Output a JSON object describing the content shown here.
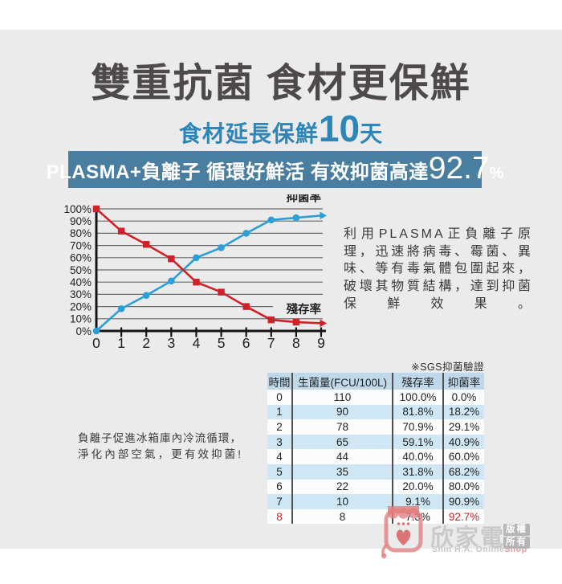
{
  "header": {
    "title": "雙重抗菌 食材更保鮮",
    "subtitle_prefix": "食材延長保鮮",
    "subtitle_number": "10",
    "subtitle_suffix": "天",
    "banner_text": "PLASMA+負離子 循環好鮮活 有效抑菌高達",
    "banner_number": "92.7",
    "banner_percent": "%"
  },
  "chart_data": {
    "type": "line",
    "x": [
      0,
      1,
      2,
      3,
      4,
      5,
      6,
      7,
      8,
      9
    ],
    "xlabel": "",
    "ylabel": "",
    "ylim": [
      0,
      100
    ],
    "ytick_step": 10,
    "ytick_suffix": "%",
    "grid": true,
    "legend_position": "inline-right",
    "series": [
      {
        "name": "抑菌率",
        "color": "#2b9fd8",
        "marker": "circle",
        "values": [
          0,
          18.2,
          29.1,
          40.9,
          60.0,
          68.2,
          80.0,
          90.9,
          92.7
        ],
        "arrow_end_value": 94.5,
        "label_y_pct": 107
      },
      {
        "name": "殘存率",
        "color": "#cf2127",
        "marker": "square",
        "values": [
          100,
          81.8,
          70.9,
          59.1,
          40.0,
          31.8,
          20.0,
          9.1,
          7.3
        ],
        "arrow_end_value": 6.3,
        "label_y_pct": 15
      }
    ]
  },
  "right_paragraph": "利用PLASMA正負離子原理，迅速將病毒、霉菌、異味、等有毒氣體包圍起來，破壞其物質結構，達到抑菌保鮮效果。",
  "left_paragraph": "負離子促進冰箱庫內冷流循環，淨化內部空氣，更有效抑菌!",
  "table": {
    "note": "※SGS抑菌驗證",
    "headers": [
      "時間",
      "生菌量(FCU/100L)",
      "殘存率",
      "抑菌率"
    ],
    "rows": [
      [
        "0",
        "110",
        "100.0%",
        "0.0%"
      ],
      [
        "1",
        "90",
        "81.8%",
        "18.2%"
      ],
      [
        "2",
        "78",
        "70.9%",
        "29.1%"
      ],
      [
        "3",
        "65",
        "59.1%",
        "40.9%"
      ],
      [
        "4",
        "44",
        "40.0%",
        "60.0%"
      ],
      [
        "5",
        "35",
        "31.8%",
        "68.2%"
      ],
      [
        "6",
        "22",
        "20.0%",
        "80.0%"
      ],
      [
        "7",
        "10",
        "9.1%",
        "90.9%"
      ],
      [
        "8",
        "8",
        "7.3%",
        "92.7%"
      ]
    ],
    "red_cells": [
      [
        8,
        0
      ],
      [
        8,
        3
      ]
    ]
  },
  "watermark": {
    "brand": "欣家電",
    "subtext": "Shin H.A. Online",
    "subtext_accent": "Shop",
    "stamp": [
      "版權",
      "所有"
    ]
  },
  "colors": {
    "page_bg": "#ebebeb",
    "title": "#4e4a4b",
    "subtitle_blue": "#2e86b8",
    "banner_bg": "#4a7ea0",
    "line_blue": "#2b9fd8",
    "line_red": "#cf2127",
    "table_header_bg": "#bfd9ea",
    "table_row_bg": "#cfe7f4",
    "red_text": "#c8262c",
    "watermark_pink": "#e27d7d",
    "watermark_gray": "#c9c9c9"
  }
}
